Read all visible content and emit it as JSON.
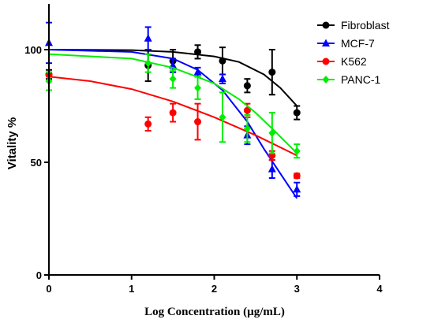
{
  "chart_data": {
    "type": "scatter",
    "xlabel": "Log Concentration (µg/mL)",
    "ylabel": "Vitality %",
    "xlim": [
      0,
      4
    ],
    "ylim": [
      0,
      100
    ],
    "x_ticks": [
      "0",
      "1",
      "2",
      "3",
      "4"
    ],
    "y_ticks": [
      "0",
      "50",
      "100"
    ],
    "legend_position": "top-right",
    "series": [
      {
        "name": "Fibroblast",
        "color": "#000000",
        "marker": "circle",
        "x": [
          0,
          1.2,
          1.5,
          1.8,
          2.1,
          2.4,
          2.7,
          3.0
        ],
        "y": [
          89,
          93,
          95,
          99,
          95,
          84,
          90,
          72
        ],
        "err": [
          2,
          7,
          5,
          3,
          6,
          3,
          10,
          3
        ],
        "fit": [
          [
            0,
            100
          ],
          [
            1.0,
            99.8
          ],
          [
            1.5,
            99
          ],
          [
            2.0,
            97
          ],
          [
            2.3,
            94.5
          ],
          [
            2.6,
            89
          ],
          [
            2.8,
            83
          ],
          [
            3.0,
            75
          ]
        ]
      },
      {
        "name": "MCF-7",
        "color": "#0000ff",
        "marker": "triangle",
        "x": [
          0,
          1.2,
          1.5,
          1.8,
          2.1,
          2.4,
          2.7,
          3.0
        ],
        "y": [
          103,
          105,
          93,
          90,
          87,
          62,
          47,
          38
        ],
        "err": [
          9,
          5,
          3,
          2,
          2,
          4,
          4,
          3
        ],
        "fit": [
          [
            0,
            100
          ],
          [
            1.0,
            99
          ],
          [
            1.5,
            96
          ],
          [
            1.8,
            91
          ],
          [
            2.1,
            82
          ],
          [
            2.4,
            68
          ],
          [
            2.6,
            56
          ],
          [
            2.8,
            45
          ],
          [
            3.0,
            34
          ]
        ]
      },
      {
        "name": "K562",
        "color": "#ff0000",
        "marker": "circle",
        "x": [
          0,
          1.2,
          1.5,
          1.8,
          2.4,
          2.7,
          3.0
        ],
        "y": [
          89,
          67,
          72,
          68,
          73,
          53,
          44
        ],
        "err": [
          1,
          3,
          4,
          8,
          3,
          2,
          1
        ],
        "fit": [
          [
            0,
            88
          ],
          [
            0.5,
            86
          ],
          [
            1.0,
            82.5
          ],
          [
            1.5,
            77
          ],
          [
            2.0,
            70
          ],
          [
            2.5,
            62
          ],
          [
            3.0,
            53
          ]
        ]
      },
      {
        "name": "PANC-1",
        "color": "#00ee00",
        "marker": "diamond",
        "x": [
          0,
          1.2,
          1.5,
          1.8,
          2.1,
          2.4,
          2.7,
          3.0
        ],
        "y": [
          86,
          94,
          87,
          83,
          70,
          65,
          63,
          55
        ],
        "err": [
          4,
          4,
          4,
          5,
          11,
          6,
          9,
          3
        ],
        "fit": [
          [
            0,
            98
          ],
          [
            1.0,
            96
          ],
          [
            1.5,
            92
          ],
          [
            2.0,
            85
          ],
          [
            2.3,
            78
          ],
          [
            2.5,
            72
          ],
          [
            2.7,
            65
          ],
          [
            3.0,
            54
          ]
        ]
      }
    ]
  }
}
